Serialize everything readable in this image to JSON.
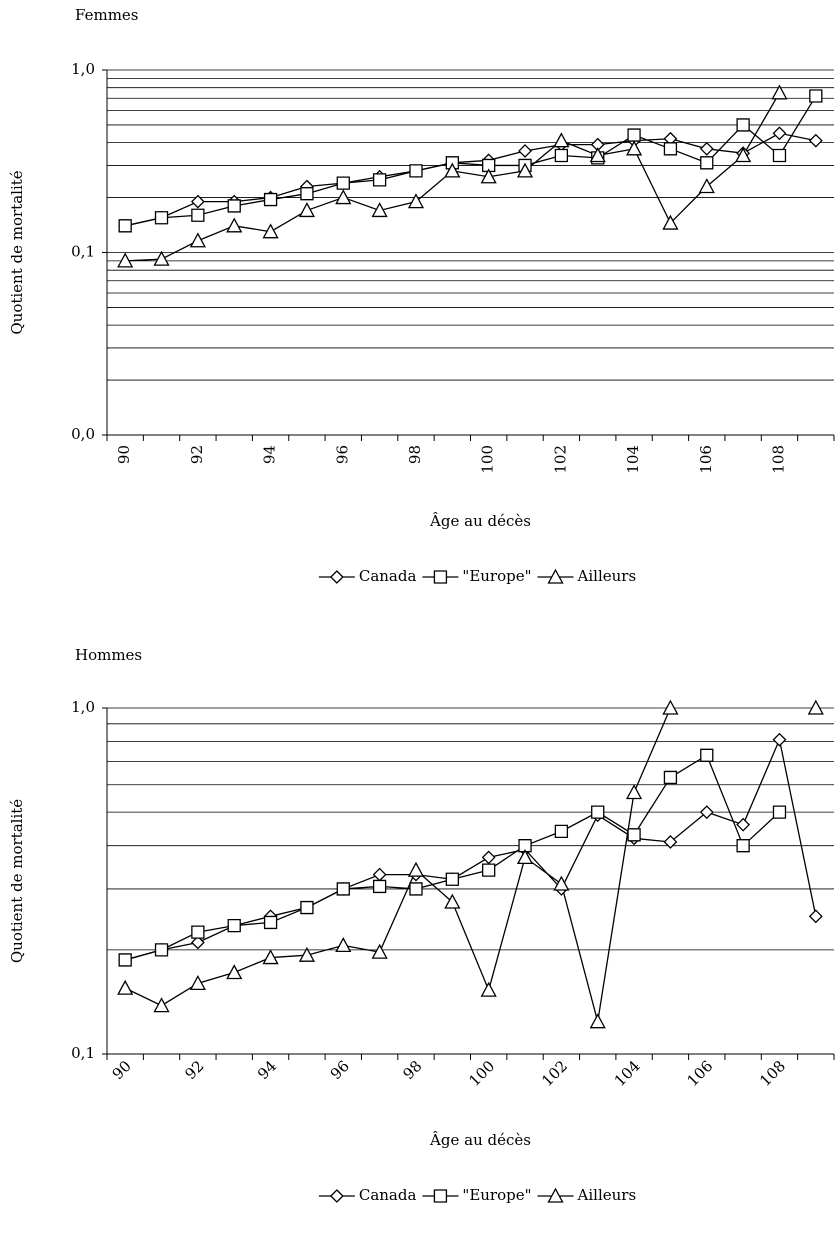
{
  "chart_data": [
    {
      "type": "line",
      "title": "Femmes",
      "x_label": "Âge au décès",
      "y_label": "Quotient de mortalité",
      "categories": [
        "90",
        null,
        "92",
        null,
        "94",
        null,
        "96",
        null,
        "98",
        null,
        "100",
        null,
        "102",
        null,
        "104",
        null,
        "106",
        null,
        "108",
        null
      ],
      "series": [
        {
          "name": "Canada",
          "color": "#000000",
          "marker": "diamond",
          "values": [
            0.14,
            0.155,
            0.19,
            0.19,
            0.2,
            0.23,
            0.24,
            0.26,
            0.28,
            0.31,
            0.32,
            0.36,
            0.39,
            0.39,
            0.41,
            0.42,
            0.37,
            0.35,
            0.45,
            0.41
          ]
        },
        {
          "name": "\"Europe\"",
          "color": "#000000",
          "marker": "square",
          "values": [
            0.14,
            0.155,
            0.16,
            0.18,
            0.195,
            0.21,
            0.24,
            0.25,
            0.28,
            0.31,
            0.3,
            0.3,
            0.34,
            0.33,
            0.44,
            0.37,
            0.31,
            0.5,
            0.34,
            0.72
          ]
        },
        {
          "name": "Ailleurs",
          "color": "#000000",
          "marker": "triangle",
          "values": [
            0.09,
            0.092,
            0.116,
            0.14,
            0.13,
            0.17,
            0.2,
            0.17,
            0.19,
            0.28,
            0.26,
            0.28,
            0.41,
            0.34,
            0.37,
            0.145,
            0.23,
            0.34,
            0.75,
            null
          ]
        }
      ],
      "ylim": [
        0.01,
        1
      ],
      "log_scale": true,
      "yticks": [
        {
          "value": 0.01,
          "label": "0,0"
        },
        {
          "value": 0.1,
          "label": "0,1"
        },
        {
          "value": 1,
          "label": "1,0"
        }
      ],
      "minor_yticks": [
        0.02,
        0.03,
        0.04,
        0.05,
        0.06,
        0.07,
        0.08,
        0.09,
        0.2,
        0.3,
        0.4,
        0.5,
        0.6,
        0.7,
        0.8,
        0.9
      ],
      "grid": true,
      "x_label_rotation": -90,
      "legend": "bottom"
    },
    {
      "type": "line",
      "title": "Hommes",
      "x_label": "Âge au décès",
      "y_label": "Quotient de mortalité",
      "categories": [
        "90",
        null,
        "92",
        null,
        "94",
        null,
        "96",
        null,
        "98",
        null,
        "100",
        null,
        "102",
        null,
        "104",
        null,
        "106",
        null,
        "108",
        null
      ],
      "series": [
        {
          "name": "Canada",
          "color": "#000000",
          "marker": "diamond",
          "values": [
            0.187,
            0.2,
            0.21,
            0.235,
            0.25,
            0.265,
            0.3,
            0.33,
            0.33,
            0.32,
            0.37,
            0.39,
            0.3,
            0.49,
            0.42,
            0.41,
            0.5,
            0.46,
            0.81,
            0.25
          ]
        },
        {
          "name": "\"Europe\"",
          "color": "#000000",
          "marker": "square",
          "values": [
            0.187,
            0.2,
            0.225,
            0.235,
            0.24,
            0.265,
            0.3,
            0.305,
            0.3,
            0.32,
            0.34,
            0.4,
            0.44,
            0.5,
            0.43,
            0.63,
            0.73,
            0.4,
            0.5,
            null
          ]
        },
        {
          "name": "Ailleurs",
          "color": "#000000",
          "marker": "triangle",
          "values": [
            0.155,
            0.138,
            0.16,
            0.172,
            0.19,
            0.193,
            0.206,
            0.197,
            0.34,
            0.275,
            0.153,
            0.37,
            0.31,
            0.124,
            0.57,
            1.0,
            null,
            null,
            null,
            1.0
          ]
        }
      ],
      "ylim": [
        0.1,
        1
      ],
      "log_scale": true,
      "yticks": [
        {
          "value": 0.1,
          "label": "0,1"
        },
        {
          "value": 1,
          "label": "1,0"
        }
      ],
      "minor_yticks": [
        0.2,
        0.3,
        0.4,
        0.5,
        0.6,
        0.7,
        0.8,
        0.9
      ],
      "grid": true,
      "x_label_rotation": -45,
      "legend": "bottom"
    }
  ]
}
